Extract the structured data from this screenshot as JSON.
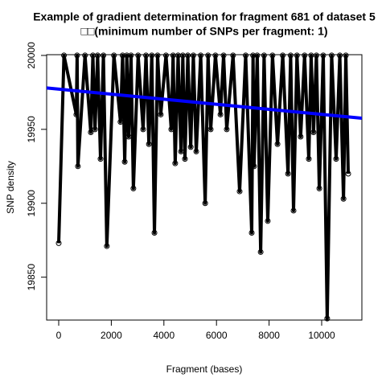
{
  "chart_data": {
    "type": "scatter",
    "title": "Example of gradient determination for fragment 681 of dataset 5",
    "subtitle": "□□(minimum number of SNPs per fragment: 1)",
    "x_label": "Fragment (bases)",
    "y_label": "SNP density",
    "xlim": [
      -459,
      11529
    ],
    "ylim": [
      19821,
      20000.5
    ],
    "xticks": [
      0,
      2000,
      4000,
      6000,
      8000,
      10000
    ],
    "yticks": [
      19850,
      19900,
      19950,
      20000
    ],
    "series": [
      {
        "color": "#000000",
        "x": [
          0,
          200,
          670,
          700,
          730,
          1000,
          1220,
          1300,
          1380,
          1480,
          1590,
          1700,
          1830,
          2100,
          2350,
          2430,
          2510,
          2590,
          2660,
          2750,
          2840,
          3020,
          3210,
          3320,
          3430,
          3540,
          3640,
          3760,
          3880,
          4080,
          4280,
          4350,
          4430,
          4540,
          4650,
          4720,
          4800,
          4910,
          5020,
          5120,
          5230,
          5400,
          5570,
          5680,
          5780,
          5960,
          6150,
          6270,
          6390,
          6630,
          6880,
          7110,
          7340,
          7390,
          7430,
          7550,
          7680,
          7810,
          7950,
          8130,
          8320,
          8520,
          8720,
          8820,
          8930,
          9060,
          9200,
          9350,
          9510,
          9600,
          9690,
          9800,
          9910,
          10060,
          10210,
          10380,
          10550,
          10690,
          10830,
          10920,
          11010
        ],
        "values": [
          19873,
          20000,
          19960,
          20000,
          19925,
          20000,
          19948,
          20000,
          19950,
          20000,
          19930,
          20000,
          19871,
          20000,
          19955,
          20000,
          19928,
          20000,
          19945,
          20000,
          19910,
          20000,
          19950,
          20000,
          19940,
          20000,
          19880,
          20000,
          19960,
          20000,
          19950,
          20000,
          19927,
          20000,
          19935,
          20000,
          19930,
          20000,
          19938,
          20000,
          19935,
          20000,
          19900,
          20000,
          19950,
          20000,
          19960,
          20000,
          19950,
          20000,
          19908,
          20000,
          19880,
          20000,
          19925,
          20000,
          19867,
          20000,
          19888,
          20000,
          19940,
          20000,
          19920,
          20000,
          19895,
          20000,
          19945,
          20000,
          19930,
          20000,
          19948,
          20000,
          19910,
          20000,
          19822,
          20000,
          19930,
          20000,
          19903,
          20000,
          19920
        ]
      },
      {
        "type": "line",
        "color": "#0000ff",
        "x": [
          -459,
          11529
        ],
        "values": [
          19978,
          19957.5
        ]
      }
    ]
  }
}
